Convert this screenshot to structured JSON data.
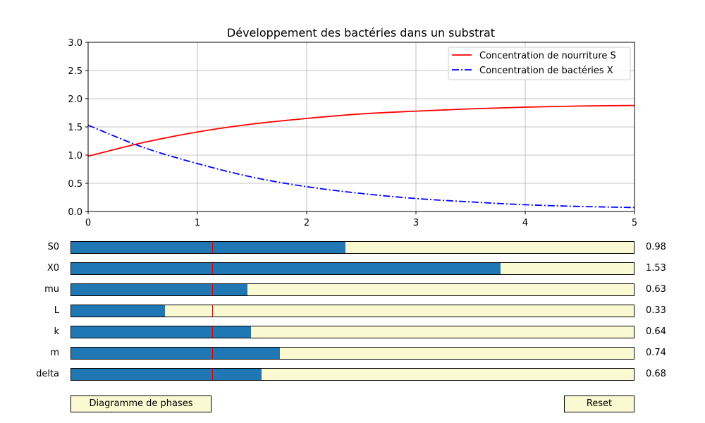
{
  "chart_data": {
    "type": "line",
    "title": "Développement des bactéries dans un substrat",
    "xlim": [
      0,
      5
    ],
    "ylim": [
      0,
      3
    ],
    "x_ticks": [
      "0",
      "1",
      "2",
      "3",
      "4",
      "5"
    ],
    "y_ticks": [
      "0.0",
      "0.5",
      "1.0",
      "1.5",
      "2.0",
      "2.5",
      "3.0"
    ],
    "grid": true,
    "legend_position": "top-right",
    "series": [
      {
        "name": "Concentration de nourriture S",
        "color": "#ff0000",
        "style": "solid",
        "x": [
          0,
          0.5,
          1,
          1.5,
          2,
          2.5,
          3,
          3.5,
          4,
          4.5,
          5
        ],
        "values": [
          0.98,
          1.22,
          1.41,
          1.55,
          1.65,
          1.73,
          1.78,
          1.82,
          1.85,
          1.87,
          1.88
        ]
      },
      {
        "name": "Concentration de bactéries X",
        "color": "#0000ff",
        "style": "dashdot",
        "x": [
          0,
          0.5,
          1,
          1.5,
          2,
          2.5,
          3,
          3.5,
          4,
          4.5,
          5
        ],
        "values": [
          1.53,
          1.14,
          0.85,
          0.61,
          0.44,
          0.32,
          0.23,
          0.17,
          0.12,
          0.09,
          0.07
        ]
      }
    ]
  },
  "sliders": [
    {
      "label": "S0",
      "value": 0.98,
      "display": "0.98",
      "fill": 0.488,
      "init": 0.25
    },
    {
      "label": "X0",
      "value": 1.53,
      "display": "1.53",
      "fill": 0.763,
      "init": 0.25
    },
    {
      "label": "mu",
      "value": 0.63,
      "display": "0.63",
      "fill": 0.313,
      "init": 0.25
    },
    {
      "label": "L",
      "value": 0.33,
      "display": "0.33",
      "fill": 0.167,
      "init": 0.25
    },
    {
      "label": "k",
      "value": 0.64,
      "display": "0.64",
      "fill": 0.32,
      "init": 0.25
    },
    {
      "label": "m",
      "value": 0.74,
      "display": "0.74",
      "fill": 0.371,
      "init": 0.25
    },
    {
      "label": "delta",
      "value": 0.68,
      "display": "0.68",
      "fill": 0.338,
      "init": 0.25
    }
  ],
  "buttons": {
    "phase_label": "Diagramme de phases",
    "reset_label": "Reset"
  },
  "colors": {
    "slider_fill": "#1f77b4",
    "slider_track": "#fafad2",
    "slider_init": "#e00000"
  }
}
